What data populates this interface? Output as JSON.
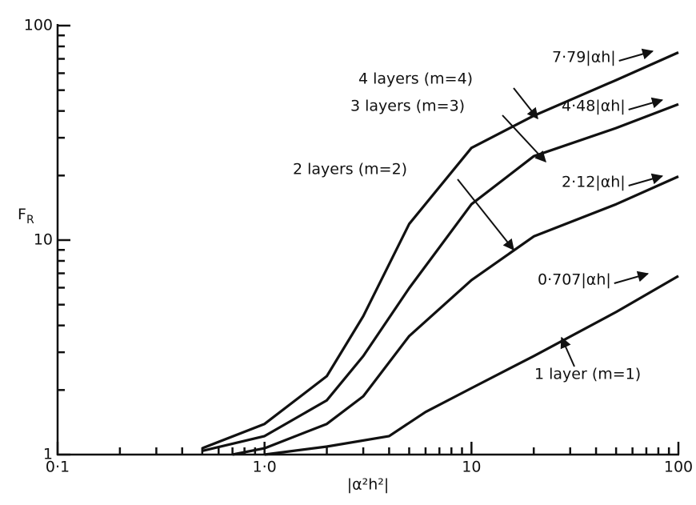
{
  "chart_data": {
    "type": "line",
    "x_label": "|α²h²|",
    "y_label": "F",
    "y_label_subscript": "R",
    "xscale": "log",
    "yscale": "log",
    "xlim": [
      0.1,
      100
    ],
    "ylim": [
      1,
      100
    ],
    "xticks": [
      {
        "value": 0.1,
        "label": "0·1"
      },
      {
        "value": 1,
        "label": "1·0"
      },
      10,
      100
    ],
    "yticks": [
      1,
      10,
      100
    ],
    "xticks_minor": [
      0.2,
      0.3,
      0.4,
      0.5,
      0.6,
      0.7,
      0.8,
      0.9,
      2,
      3,
      4,
      5,
      6,
      7,
      8,
      9,
      20,
      30,
      40,
      50,
      60,
      70,
      80,
      90
    ],
    "yticks_minor": [
      2,
      3,
      4,
      5,
      6,
      7,
      8,
      9,
      20,
      30,
      40,
      50,
      60,
      70,
      80,
      90
    ],
    "color": "#111111",
    "series": [
      {
        "name": "1 layer (m=1)",
        "asymptote_label": "0·707|αh|",
        "x": [
          1,
          2,
          4,
          6,
          10,
          20,
          50,
          100
        ],
        "values": [
          1.0,
          1.09,
          1.22,
          1.58,
          2.04,
          2.88,
          4.62,
          6.8
        ]
      },
      {
        "name": "2 layers (m=2)",
        "asymptote_label": "2·12|αh|",
        "x": [
          0.7,
          1,
          2,
          3,
          5,
          10,
          20,
          50,
          100
        ],
        "values": [
          1.0,
          1.07,
          1.39,
          1.87,
          3.57,
          6.5,
          10.4,
          14.7,
          19.8
        ]
      },
      {
        "name": "3 layers (m=3)",
        "asymptote_label": "4·48|αh|",
        "x": [
          0.5,
          1,
          2,
          3,
          5,
          10,
          20,
          50,
          100
        ],
        "values": [
          1.04,
          1.22,
          1.79,
          2.88,
          5.97,
          14.7,
          24.6,
          33.3,
          43
        ]
      },
      {
        "name": "4 layers (m=4)",
        "asymptote_label": "7·79|αh|",
        "x": [
          0.5,
          1,
          2,
          3,
          5,
          10,
          20,
          50,
          100
        ],
        "values": [
          1.07,
          1.39,
          2.32,
          4.42,
          11.9,
          26.9,
          38,
          55.7,
          75
        ]
      }
    ]
  }
}
